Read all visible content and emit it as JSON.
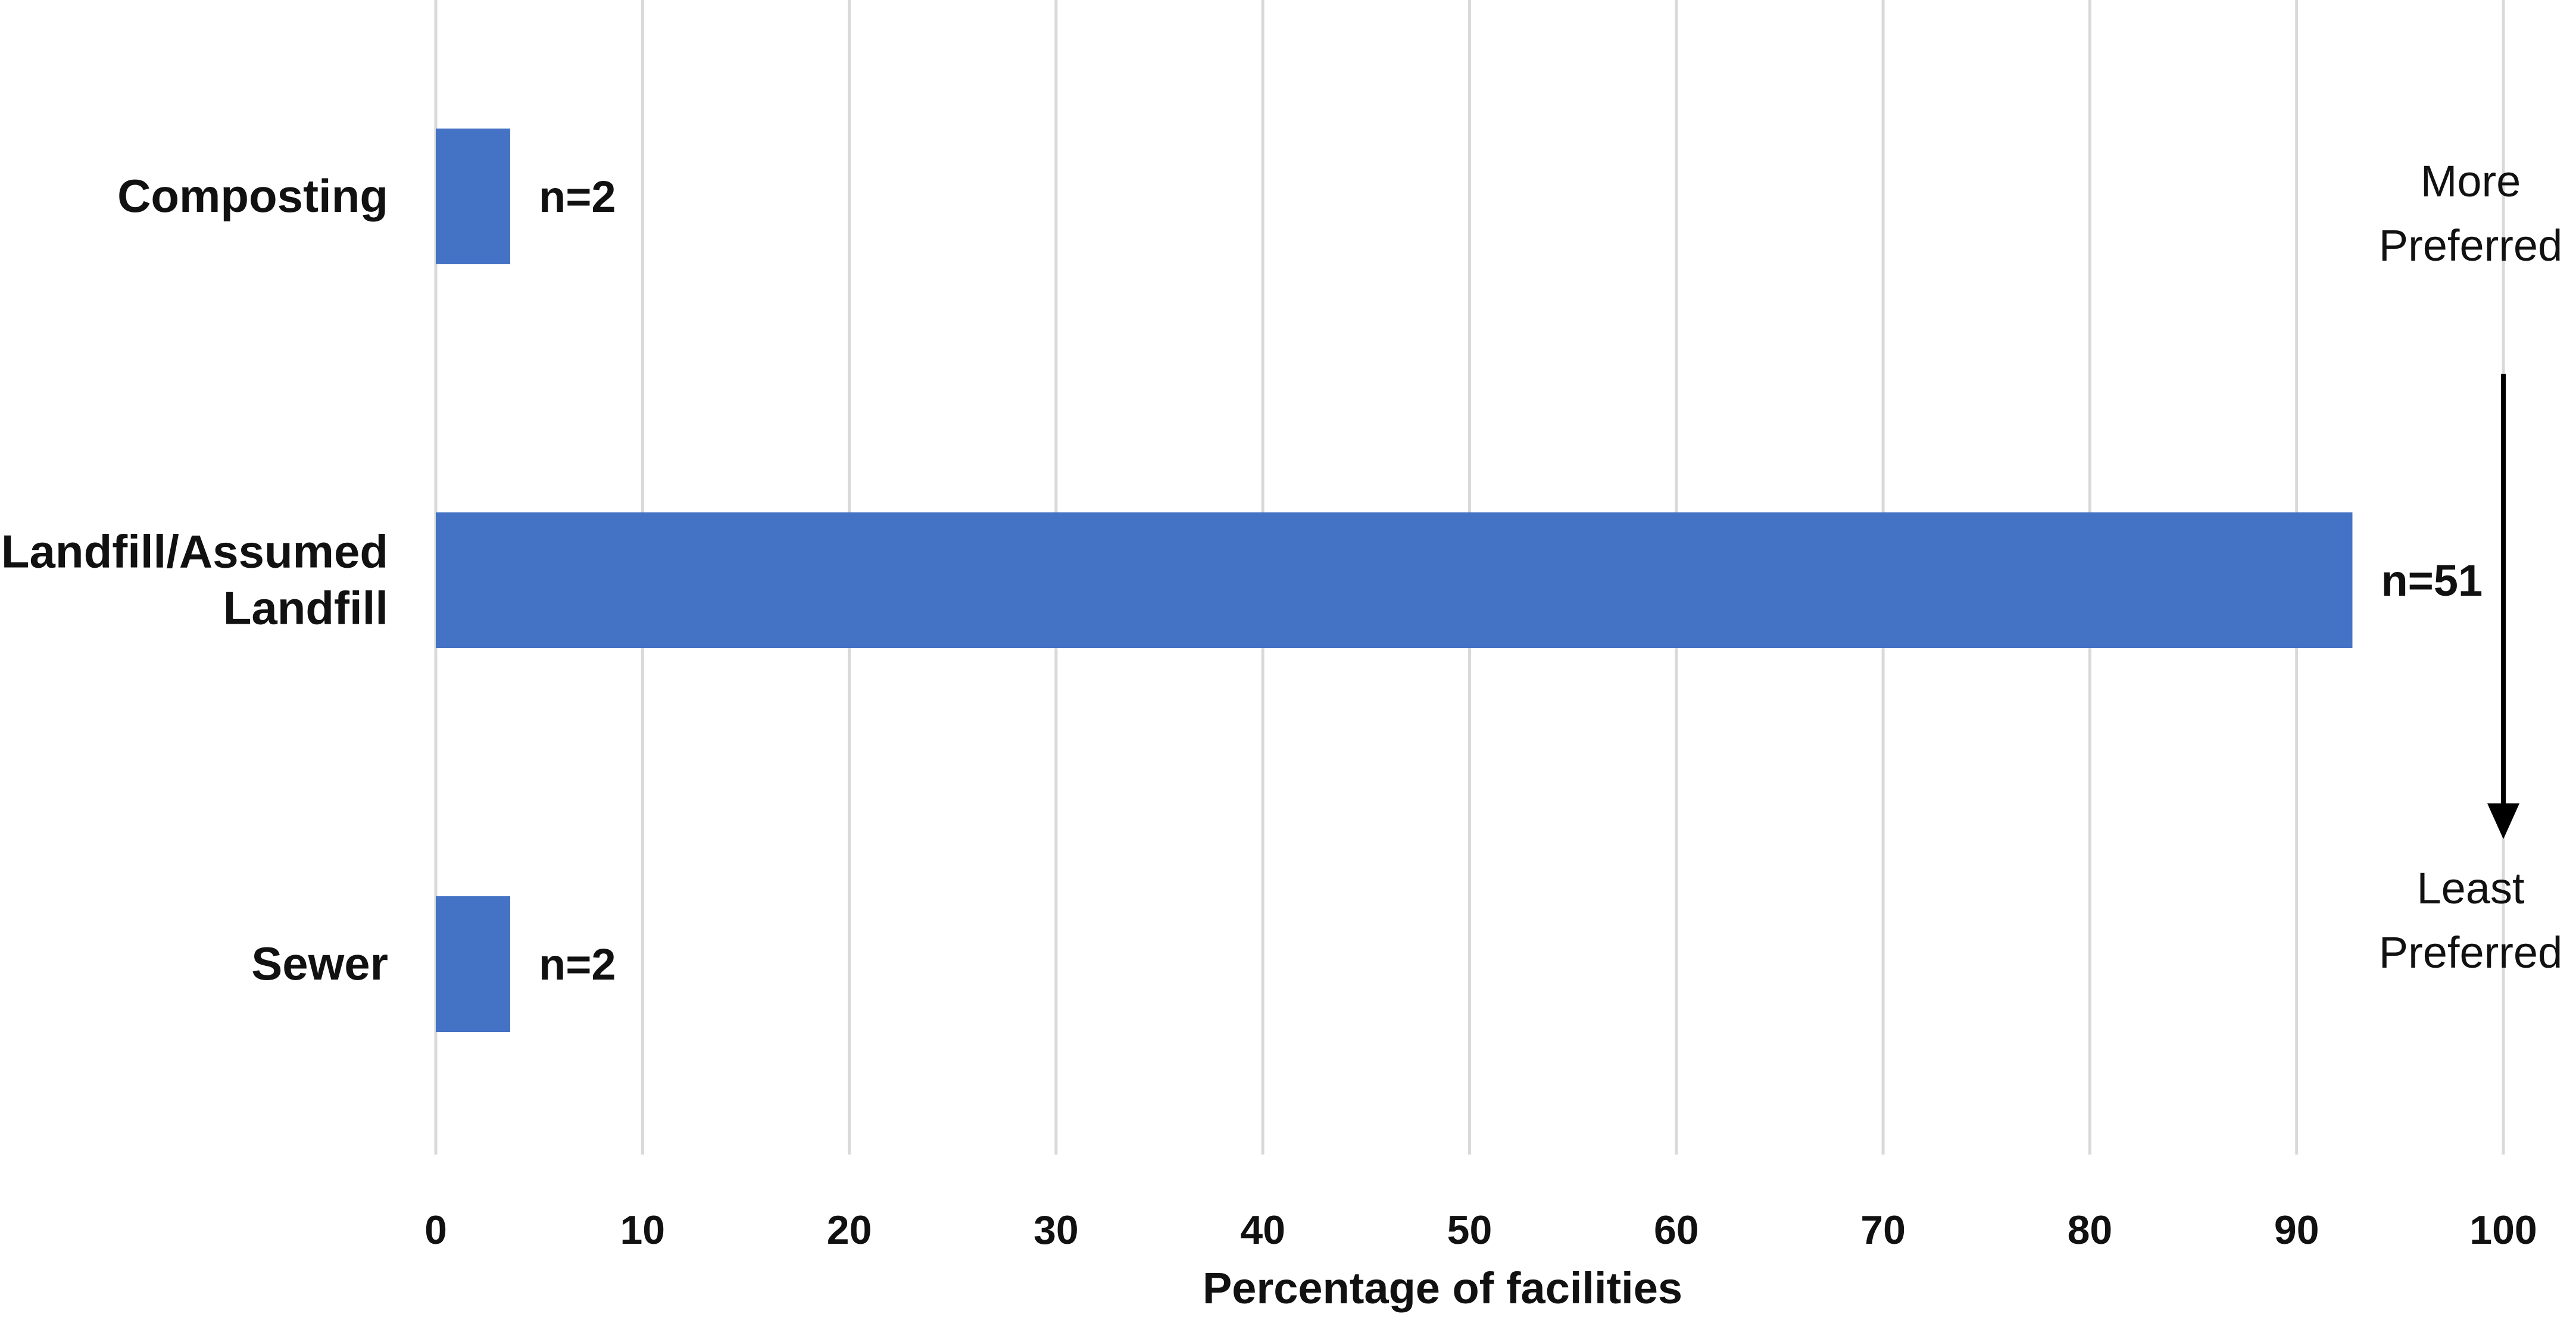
{
  "chart_data": {
    "type": "bar",
    "orientation": "horizontal",
    "title": "",
    "xlabel": "Percentage of facilities",
    "ylabel": "",
    "xlim": [
      0,
      100
    ],
    "x_ticks": [
      0,
      10,
      20,
      30,
      40,
      50,
      60,
      70,
      80,
      90,
      100
    ],
    "grid": true,
    "bar_color": "#4472c4",
    "categories": [
      {
        "label_lines": [
          "Composting"
        ],
        "value": 3.6,
        "data_label": "n=2"
      },
      {
        "label_lines": [
          "Landfill/Assumed",
          "Landfill"
        ],
        "value": 92.7,
        "data_label": "n=51"
      },
      {
        "label_lines": [
          "Sewer"
        ],
        "value": 3.6,
        "data_label": "n=2"
      }
    ],
    "annotations": {
      "top_lines": [
        "More",
        "Preferred"
      ],
      "bottom_lines": [
        "Least",
        "Preferred"
      ],
      "arrow_direction": "down"
    }
  }
}
